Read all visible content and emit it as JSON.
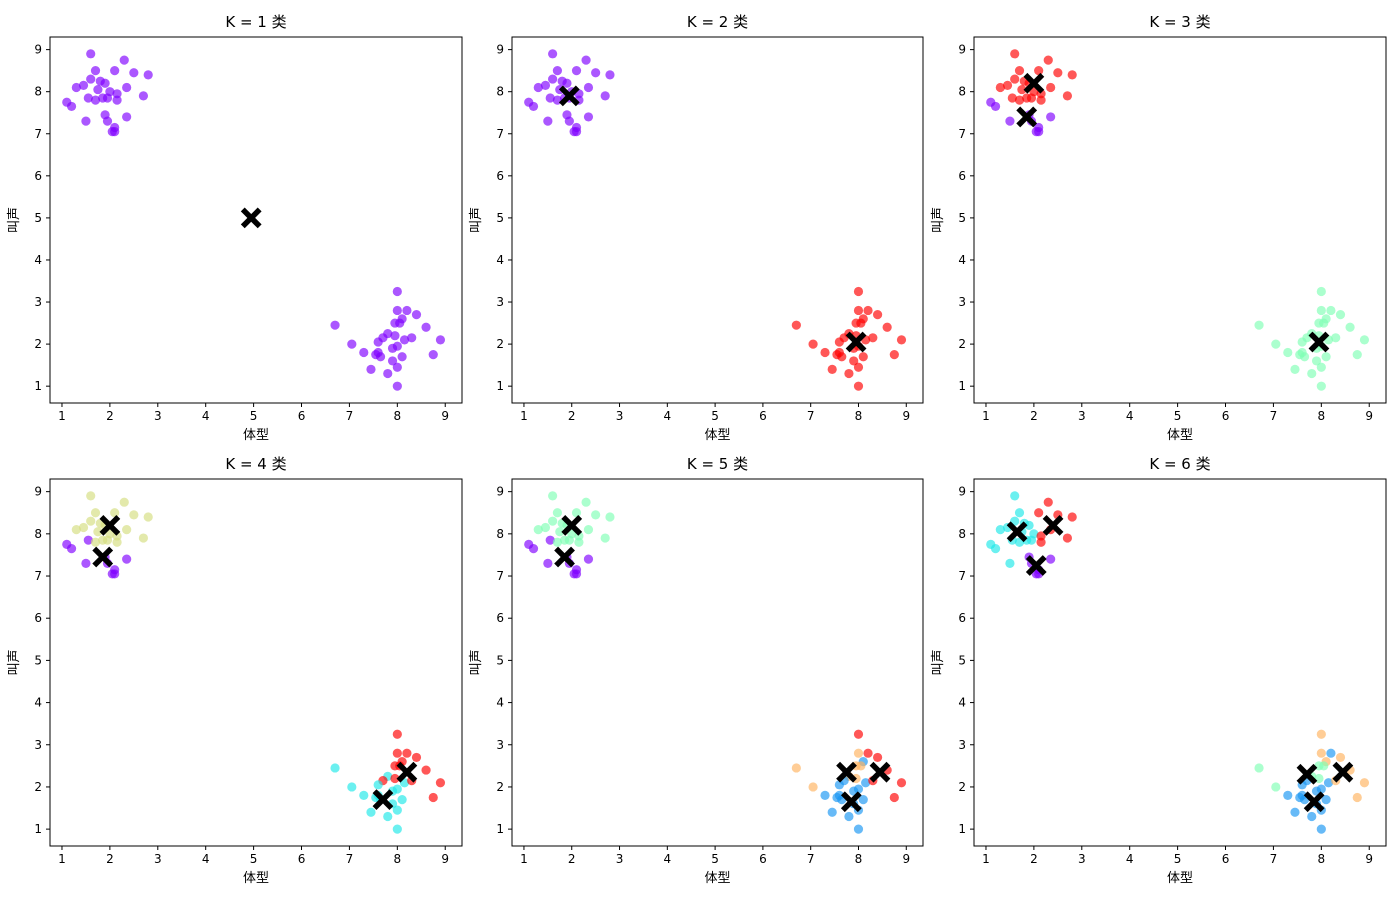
{
  "figure": {
    "title": ""
  },
  "palette": {
    "purple": "#8000ff",
    "red": "#ff0000",
    "mint": "#80ffb4",
    "yellowgreen": "#d4dd80",
    "cyan": "#1ee8e8",
    "blue": "#1996f3",
    "orange": "#ffb360",
    "centroid": "#000000"
  },
  "point_sets": {
    "A": [
      [
        1.6,
        8.9
      ],
      [
        2.3,
        8.75
      ],
      [
        1.7,
        8.5
      ],
      [
        2.1,
        8.5
      ],
      [
        2.5,
        8.45
      ],
      [
        2.8,
        8.4
      ],
      [
        1.6,
        8.3
      ],
      [
        1.8,
        8.25
      ],
      [
        1.9,
        8.2
      ],
      [
        1.3,
        8.1
      ],
      [
        1.45,
        8.15
      ],
      [
        2.35,
        8.1
      ],
      [
        1.75,
        8.05
      ],
      [
        2.0,
        8.0
      ],
      [
        2.15,
        7.95
      ],
      [
        2.7,
        7.9
      ],
      [
        1.55,
        7.85
      ],
      [
        1.85,
        7.85
      ],
      [
        1.7,
        7.8
      ],
      [
        1.95,
        7.85
      ],
      [
        2.15,
        7.8
      ],
      [
        1.1,
        7.75
      ],
      [
        1.2,
        7.65
      ],
      [
        1.9,
        7.45
      ],
      [
        1.5,
        7.3
      ],
      [
        2.35,
        7.4
      ],
      [
        1.95,
        7.3
      ],
      [
        2.1,
        7.15
      ],
      [
        2.05,
        7.05
      ],
      [
        2.1,
        7.05
      ]
    ],
    "B": [
      [
        8.0,
        3.25
      ],
      [
        8.0,
        2.8
      ],
      [
        8.2,
        2.8
      ],
      [
        8.1,
        2.6
      ],
      [
        8.4,
        2.7
      ],
      [
        7.95,
        2.5
      ],
      [
        8.05,
        2.5
      ],
      [
        6.7,
        2.45
      ],
      [
        8.6,
        2.4
      ],
      [
        7.8,
        2.25
      ],
      [
        7.95,
        2.2
      ],
      [
        8.15,
        2.1
      ],
      [
        8.3,
        2.15
      ],
      [
        7.7,
        2.15
      ],
      [
        8.9,
        2.1
      ],
      [
        7.05,
        2.0
      ],
      [
        7.6,
        2.05
      ],
      [
        8.0,
        1.95
      ],
      [
        7.9,
        1.9
      ],
      [
        7.3,
        1.8
      ],
      [
        7.6,
        1.8
      ],
      [
        7.55,
        1.75
      ],
      [
        8.75,
        1.75
      ],
      [
        8.1,
        1.7
      ],
      [
        7.65,
        1.7
      ],
      [
        7.9,
        1.6
      ],
      [
        7.45,
        1.4
      ],
      [
        8.0,
        1.45
      ],
      [
        7.8,
        1.3
      ],
      [
        8.0,
        1.0
      ]
    ]
  },
  "chart_data": [
    {
      "type": "scatter",
      "title": "K = 1 类",
      "xlabel": "体型",
      "ylabel": "叫声",
      "xlim": [
        0.75,
        9.35
      ],
      "ylim": [
        0.6,
        9.3
      ],
      "xticks": [
        "1",
        "2",
        "3",
        "4",
        "5",
        "6",
        "7",
        "8",
        "9"
      ],
      "yticks": [
        "1",
        "2",
        "3",
        "4",
        "5",
        "6",
        "7",
        "8",
        "9"
      ],
      "clusters": {
        "A": {
          "default": "purple",
          "overrides": []
        },
        "B": {
          "default": "purple",
          "overrides": []
        }
      },
      "centroids": [
        [
          4.95,
          5.0
        ]
      ]
    },
    {
      "type": "scatter",
      "title": "K = 2 类",
      "xlabel": "体型",
      "ylabel": "叫声",
      "xlim": [
        0.75,
        9.35
      ],
      "ylim": [
        0.6,
        9.3
      ],
      "xticks": [
        "1",
        "2",
        "3",
        "4",
        "5",
        "6",
        "7",
        "8",
        "9"
      ],
      "yticks": [
        "1",
        "2",
        "3",
        "4",
        "5",
        "6",
        "7",
        "8",
        "9"
      ],
      "clusters": {
        "A": {
          "default": "purple",
          "overrides": []
        },
        "B": {
          "default": "red",
          "overrides": []
        }
      },
      "centroids": [
        [
          1.95,
          7.9
        ],
        [
          7.95,
          2.05
        ]
      ]
    },
    {
      "type": "scatter",
      "title": "K = 3 类",
      "xlabel": "体型",
      "ylabel": "叫声",
      "xlim": [
        0.75,
        9.35
      ],
      "ylim": [
        0.6,
        9.3
      ],
      "xticks": [
        "1",
        "2",
        "3",
        "4",
        "5",
        "6",
        "7",
        "8",
        "9"
      ],
      "yticks": [
        "1",
        "2",
        "3",
        "4",
        "5",
        "6",
        "7",
        "8",
        "9"
      ],
      "clusters": {
        "A": {
          "default": "red",
          "overrides": [
            [
              21,
              "purple"
            ],
            [
              22,
              "purple"
            ],
            [
              23,
              "purple"
            ],
            [
              24,
              "purple"
            ],
            [
              25,
              "purple"
            ],
            [
              26,
              "purple"
            ],
            [
              27,
              "purple"
            ],
            [
              28,
              "purple"
            ],
            [
              29,
              "purple"
            ]
          ]
        },
        "B": {
          "default": "mint",
          "overrides": []
        }
      },
      "centroids": [
        [
          2.0,
          8.2
        ],
        [
          1.85,
          7.4
        ],
        [
          7.95,
          2.05
        ]
      ]
    },
    {
      "type": "scatter",
      "title": "K = 4 类",
      "xlabel": "体型",
      "ylabel": "叫声",
      "xlim": [
        0.75,
        9.35
      ],
      "ylim": [
        0.6,
        9.3
      ],
      "xticks": [
        "1",
        "2",
        "3",
        "4",
        "5",
        "6",
        "7",
        "8",
        "9"
      ],
      "yticks": [
        "1",
        "2",
        "3",
        "4",
        "5",
        "6",
        "7",
        "8",
        "9"
      ],
      "clusters": {
        "A": {
          "default": "yellowgreen",
          "overrides": [
            [
              16,
              "purple"
            ],
            [
              21,
              "purple"
            ],
            [
              22,
              "purple"
            ],
            [
              23,
              "purple"
            ],
            [
              24,
              "purple"
            ],
            [
              25,
              "purple"
            ],
            [
              26,
              "purple"
            ],
            [
              27,
              "purple"
            ],
            [
              28,
              "purple"
            ],
            [
              29,
              "purple"
            ]
          ]
        },
        "B": {
          "default": "red",
          "overrides": [
            [
              7,
              "cyan"
            ],
            [
              9,
              "cyan"
            ],
            [
              11,
              "cyan"
            ],
            [
              15,
              "cyan"
            ],
            [
              16,
              "cyan"
            ],
            [
              17,
              "cyan"
            ],
            [
              18,
              "cyan"
            ],
            [
              19,
              "cyan"
            ],
            [
              20,
              "cyan"
            ],
            [
              21,
              "cyan"
            ],
            [
              23,
              "cyan"
            ],
            [
              24,
              "cyan"
            ],
            [
              25,
              "cyan"
            ],
            [
              26,
              "cyan"
            ],
            [
              27,
              "cyan"
            ],
            [
              28,
              "cyan"
            ],
            [
              29,
              "cyan"
            ]
          ]
        }
      },
      "centroids": [
        [
          2.0,
          8.2
        ],
        [
          1.85,
          7.45
        ],
        [
          8.2,
          2.35
        ],
        [
          7.7,
          1.7
        ]
      ]
    },
    {
      "type": "scatter",
      "title": "K = 5 类",
      "xlabel": "体型",
      "ylabel": "叫声",
      "xlim": [
        0.75,
        9.35
      ],
      "ylim": [
        0.6,
        9.3
      ],
      "xticks": [
        "1",
        "2",
        "3",
        "4",
        "5",
        "6",
        "7",
        "8",
        "9"
      ],
      "yticks": [
        "1",
        "2",
        "3",
        "4",
        "5",
        "6",
        "7",
        "8",
        "9"
      ],
      "clusters": {
        "A": {
          "default": "mint",
          "overrides": [
            [
              16,
              "purple"
            ],
            [
              21,
              "purple"
            ],
            [
              22,
              "purple"
            ],
            [
              23,
              "purple"
            ],
            [
              24,
              "purple"
            ],
            [
              25,
              "purple"
            ],
            [
              26,
              "purple"
            ],
            [
              27,
              "purple"
            ],
            [
              28,
              "purple"
            ],
            [
              29,
              "purple"
            ]
          ]
        },
        "B": {
          "default": "blue",
          "overrides": [
            [
              0,
              "red"
            ],
            [
              2,
              "red"
            ],
            [
              4,
              "red"
            ],
            [
              8,
              "red"
            ],
            [
              12,
              "red"
            ],
            [
              14,
              "red"
            ],
            [
              22,
              "red"
            ],
            [
              1,
              "orange"
            ],
            [
              5,
              "orange"
            ],
            [
              6,
              "orange"
            ],
            [
              7,
              "orange"
            ],
            [
              9,
              "orange"
            ],
            [
              10,
              "orange"
            ],
            [
              15,
              "orange"
            ]
          ]
        }
      },
      "centroids": [
        [
          2.0,
          8.2
        ],
        [
          1.85,
          7.45
        ],
        [
          7.75,
          2.35
        ],
        [
          8.45,
          2.35
        ],
        [
          7.85,
          1.65
        ]
      ]
    },
    {
      "type": "scatter",
      "title": "K = 6 类",
      "xlabel": "体型",
      "ylabel": "叫声",
      "xlim": [
        0.75,
        9.35
      ],
      "ylim": [
        0.6,
        9.3
      ],
      "xticks": [
        "1",
        "2",
        "3",
        "4",
        "5",
        "6",
        "7",
        "8",
        "9"
      ],
      "yticks": [
        "1",
        "2",
        "3",
        "4",
        "5",
        "6",
        "7",
        "8",
        "9"
      ],
      "clusters": {
        "A": {
          "default": "cyan",
          "overrides": [
            [
              1,
              "red"
            ],
            [
              3,
              "red"
            ],
            [
              4,
              "red"
            ],
            [
              5,
              "red"
            ],
            [
              11,
              "red"
            ],
            [
              14,
              "red"
            ],
            [
              15,
              "red"
            ],
            [
              20,
              "red"
            ],
            [
              23,
              "purple"
            ],
            [
              25,
              "purple"
            ],
            [
              26,
              "purple"
            ],
            [
              27,
              "purple"
            ],
            [
              28,
              "purple"
            ],
            [
              29,
              "purple"
            ]
          ]
        },
        "B": {
          "default": "blue",
          "overrides": [
            [
              0,
              "orange"
            ],
            [
              1,
              "orange"
            ],
            [
              3,
              "orange"
            ],
            [
              4,
              "orange"
            ],
            [
              8,
              "orange"
            ],
            [
              12,
              "orange"
            ],
            [
              14,
              "orange"
            ],
            [
              22,
              "orange"
            ],
            [
              5,
              "mint"
            ],
            [
              6,
              "mint"
            ],
            [
              7,
              "mint"
            ],
            [
              9,
              "mint"
            ],
            [
              10,
              "mint"
            ],
            [
              15,
              "mint"
            ]
          ]
        }
      },
      "centroids": [
        [
          1.65,
          8.05
        ],
        [
          2.4,
          8.2
        ],
        [
          2.05,
          7.25
        ],
        [
          7.7,
          2.3
        ],
        [
          8.45,
          2.35
        ],
        [
          7.85,
          1.65
        ]
      ]
    }
  ]
}
